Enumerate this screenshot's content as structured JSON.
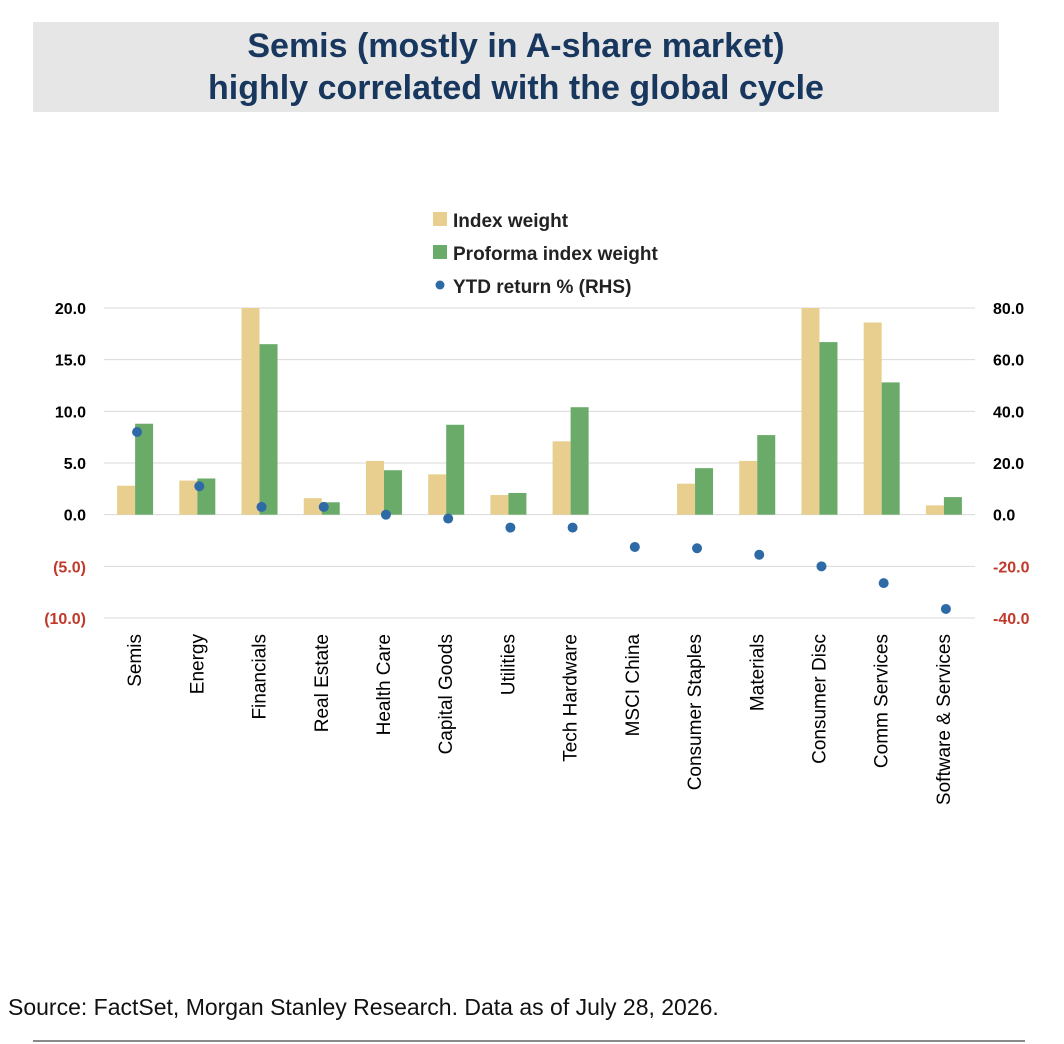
{
  "title": {
    "line1": "Semis (mostly in A-share market)",
    "line2": "highly correlated with the global cycle"
  },
  "source": "Source: FactSet, Morgan Stanley Research. Data as of July 28, 2026.",
  "colors": {
    "title": "#17375e",
    "index_weight": "#e8cf8f",
    "proforma_weight": "#6aab6a",
    "ytd_return": "#2e6aa6",
    "negative_ticks": "#c0392b",
    "grid": "#d9d9d9"
  },
  "chart_data": {
    "type": "bar",
    "categories": [
      "Semis",
      "Energy",
      "Financials",
      "Real Estate",
      "Health Care",
      "Capital Goods",
      "Utilities",
      "Tech Hardware",
      "MSCI China",
      "Consumer Staples",
      "Materials",
      "Consumer Disc",
      "Comm Services",
      "Software & Services"
    ],
    "series": [
      {
        "name": "Index weight",
        "type": "bar",
        "axis": "left",
        "color": "#e8cf8f",
        "values": [
          2.8,
          3.3,
          20.0,
          1.6,
          5.2,
          3.9,
          1.9,
          7.1,
          0.0,
          3.0,
          5.2,
          20.0,
          18.6,
          0.9
        ]
      },
      {
        "name": "Proforma index weight",
        "type": "bar",
        "axis": "left",
        "color": "#6aab6a",
        "values": [
          8.8,
          3.5,
          16.5,
          1.2,
          4.3,
          8.7,
          2.1,
          10.4,
          0.0,
          4.5,
          7.7,
          16.7,
          12.8,
          1.7
        ]
      },
      {
        "name": "YTD return % (RHS)",
        "type": "scatter",
        "axis": "right",
        "color": "#2e6aa6",
        "values": [
          32.0,
          11.0,
          3.0,
          3.0,
          0.0,
          -1.5,
          -5.0,
          -5.0,
          -12.5,
          -13.0,
          -15.5,
          -20.0,
          -26.5,
          -36.5
        ]
      }
    ],
    "y_left": {
      "ylim": [
        -10,
        20
      ],
      "ticks": [
        "20.0",
        "15.0",
        "10.0",
        "5.0",
        "0.0",
        "(5.0)",
        "(10.0)"
      ],
      "tick_values": [
        20,
        15,
        10,
        5,
        0,
        -5,
        -10
      ]
    },
    "y_right": {
      "ylim": [
        -40,
        80
      ],
      "ticks": [
        "80.0",
        "60.0",
        "40.0",
        "20.0",
        "0.0",
        "-20.0",
        "-40.0"
      ],
      "tick_values": [
        80,
        60,
        40,
        20,
        0,
        -20,
        -40
      ]
    },
    "grid": true,
    "legend_position": "top-center"
  }
}
